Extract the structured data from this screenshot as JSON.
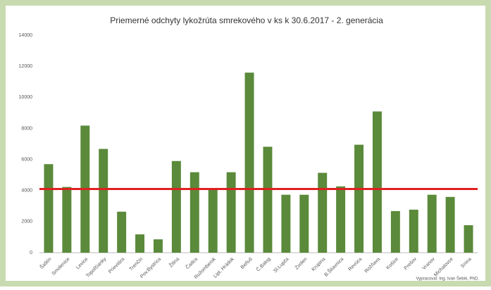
{
  "chart_data": {
    "type": "bar",
    "title": "Priemerné odchyty lykožrúta smrekového v ks k 30.6.2017 - 2. generácia",
    "categories": [
      "Šaštín",
      "Smolenice",
      "Levice",
      "Topoľčianky",
      "Prievidza",
      "Trenčín",
      "Pov.Bystrica",
      "Žilina",
      "Čadca",
      "Ružomberok",
      "Lipt. Hrádok",
      "Beňuš",
      "Č.Balog",
      "Sl.Lupča",
      "Zvolen",
      "Krupina",
      "B.Štiavnica",
      "Revúca",
      "Rožňava",
      "Košice",
      "Prešov",
      "Vranov",
      "Michalovce",
      "Snina"
    ],
    "values": [
      5700,
      4230,
      8180,
      6680,
      2640,
      1180,
      860,
      5900,
      5180,
      4090,
      5180,
      11590,
      6820,
      3730,
      3730,
      5140,
      4270,
      6950,
      9090,
      2680,
      2770,
      3730,
      3590,
      1770
    ],
    "color": "#5a8a3a",
    "reference_line": {
      "value": 4100,
      "color": "#e02020"
    },
    "ylim": [
      0,
      14000
    ],
    "yticks": [
      0,
      2000,
      4000,
      6000,
      8000,
      10000,
      12000,
      14000
    ],
    "grid": false,
    "footnote": "Vypracoval: Ing. Ivan Šebík, PhD."
  }
}
